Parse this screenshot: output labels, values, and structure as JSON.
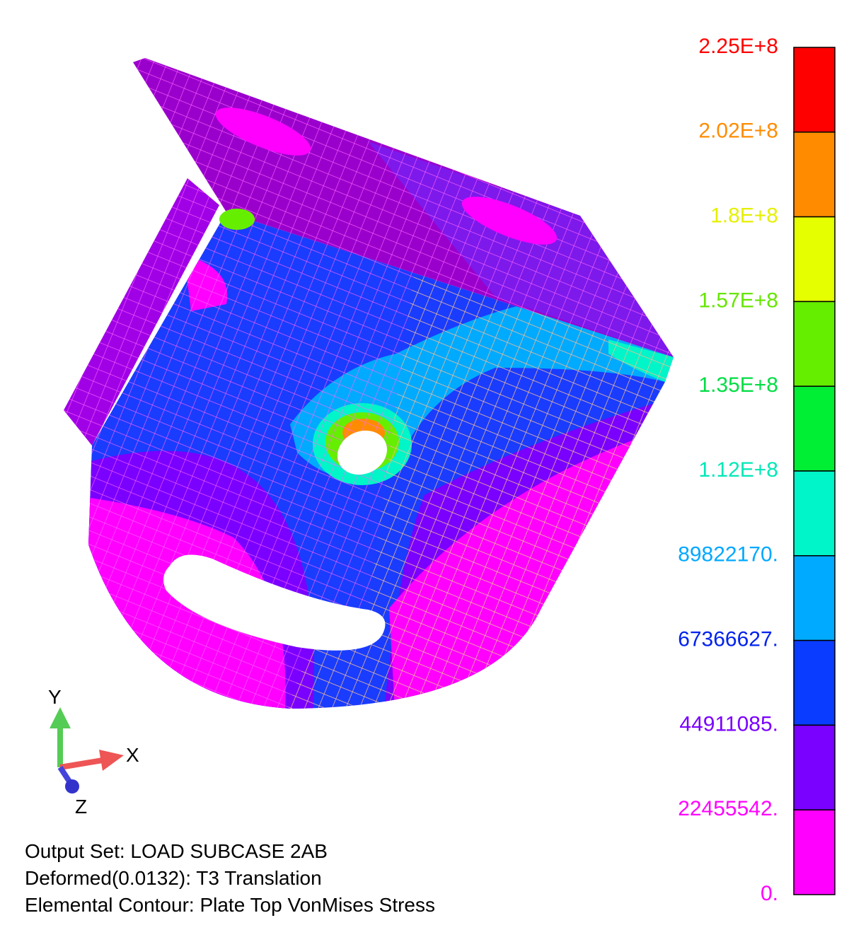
{
  "legend": {
    "labels": [
      "2.25E+8",
      "2.02E+8",
      "1.8E+8",
      "1.57E+8",
      "1.35E+8",
      "1.12E+8",
      "89822170.",
      "67366627.",
      "44911085.",
      "22455542.",
      "0."
    ],
    "label_colors": [
      "#ff0000",
      "#ff8c00",
      "#e6f000",
      "#66e600",
      "#00dd44",
      "#00e8b8",
      "#00a8ff",
      "#0022ee",
      "#7a00ff",
      "#ff00ff",
      "#ff00ff"
    ],
    "band_colors": [
      "#ff0000",
      "#ff8c00",
      "#e6ff00",
      "#66ee00",
      "#00ee33",
      "#00f5c8",
      "#00aaff",
      "#0a3cff",
      "#7a00ff",
      "#ff00ff"
    ]
  },
  "triad": {
    "y": "Y",
    "x": "X",
    "z": "Z"
  },
  "info": [
    "Output Set: LOAD SUBCASE 2AB",
    "Deformed(0.0132): T3 Translation",
    "Elemental Contour: Plate Top VonMises Stress"
  ]
}
